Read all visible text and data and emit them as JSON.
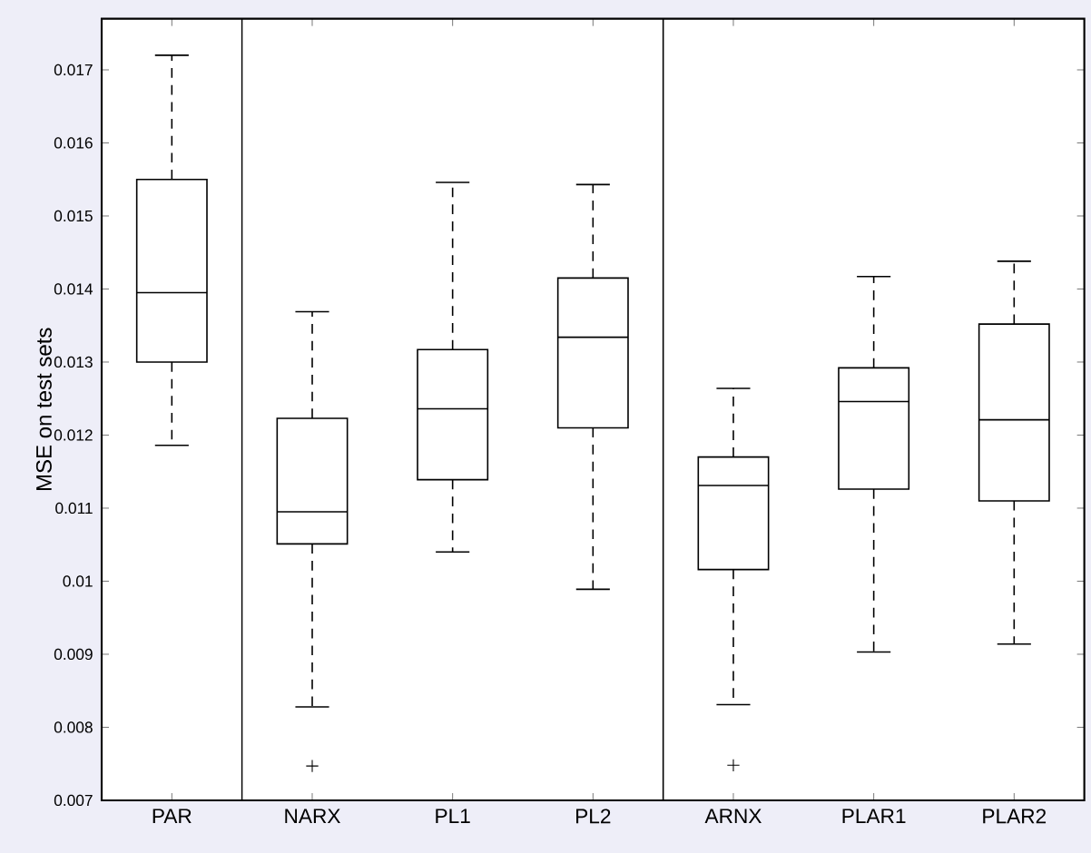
{
  "chart_data": {
    "type": "box",
    "ylabel": "MSE on test sets",
    "categories": [
      "PAR",
      "NARX",
      "PL1",
      "PL2",
      "ARNX",
      "PLAR1",
      "PLAR2"
    ],
    "boxes": [
      {
        "low": 0.01186,
        "q1": 0.013,
        "median": 0.01395,
        "q3": 0.0155,
        "high": 0.0172
      },
      {
        "low": 0.00828,
        "q1": 0.01051,
        "median": 0.01095,
        "q3": 0.01223,
        "high": 0.01369,
        "outliers": [
          0.00747
        ]
      },
      {
        "low": 0.0104,
        "q1": 0.01139,
        "median": 0.01236,
        "q3": 0.01317,
        "high": 0.01546
      },
      {
        "low": 0.00989,
        "q1": 0.0121,
        "median": 0.01334,
        "q3": 0.01415,
        "high": 0.01543
      },
      {
        "low": 0.00831,
        "q1": 0.01016,
        "median": 0.01131,
        "q3": 0.0117,
        "high": 0.01264,
        "outliers": [
          0.00748
        ]
      },
      {
        "low": 0.00903,
        "q1": 0.01126,
        "median": 0.01246,
        "q3": 0.01292,
        "high": 0.01417
      },
      {
        "low": 0.00914,
        "q1": 0.0111,
        "median": 0.01221,
        "q3": 0.01352,
        "high": 0.01438
      }
    ],
    "color": "#000000",
    "ylim": [
      0.007,
      0.0177
    ],
    "yticks": [
      0.007,
      0.008,
      0.009,
      0.01,
      0.011,
      0.012,
      0.013,
      0.014,
      0.015,
      0.016,
      0.017
    ],
    "grid": false
  }
}
